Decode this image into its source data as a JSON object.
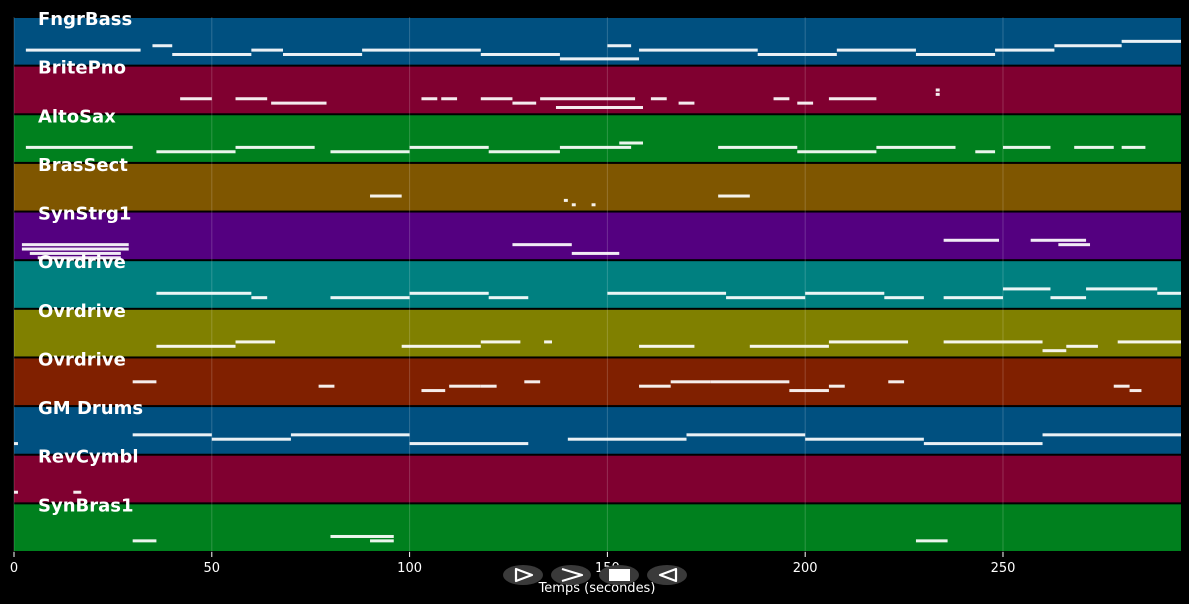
{
  "chart_data": {
    "type": "piano-roll",
    "xlabel": "Temps (secondes)",
    "xlim": [
      0,
      295
    ],
    "xticks": [
      0,
      50,
      100,
      150,
      200,
      250
    ],
    "grid": true,
    "tracks": [
      {
        "name": "FngrBass",
        "color": "#005080",
        "notes": [
          [
            3,
            29,
            3
          ],
          [
            35,
            5,
            2
          ],
          [
            40,
            20,
            4
          ],
          [
            60,
            8,
            3
          ],
          [
            68,
            20,
            4
          ],
          [
            88,
            30,
            3
          ],
          [
            118,
            20,
            4
          ],
          [
            138,
            20,
            5
          ],
          [
            150,
            6,
            2
          ],
          [
            158,
            30,
            3
          ],
          [
            188,
            20,
            4
          ],
          [
            208,
            20,
            3
          ],
          [
            228,
            20,
            4
          ],
          [
            248,
            15,
            3
          ],
          [
            263,
            17,
            2
          ],
          [
            280,
            15,
            1
          ]
        ]
      },
      {
        "name": "BritePno",
        "color": "#800030",
        "notes": [
          [
            42,
            8,
            3
          ],
          [
            56,
            8,
            3
          ],
          [
            65,
            14,
            4
          ],
          [
            103,
            4,
            3
          ],
          [
            108,
            4,
            3
          ],
          [
            118,
            8,
            3
          ],
          [
            126,
            6,
            4
          ],
          [
            133,
            24,
            3
          ],
          [
            137,
            22,
            5
          ],
          [
            161,
            4,
            3
          ],
          [
            168,
            4,
            4
          ],
          [
            192,
            4,
            3
          ],
          [
            198,
            4,
            4
          ],
          [
            206,
            12,
            3
          ],
          [
            233,
            1,
            1
          ],
          [
            233,
            1,
            2
          ]
        ]
      },
      {
        "name": "AltoSax",
        "color": "#00801e",
        "notes": [
          [
            3,
            27,
            3
          ],
          [
            36,
            20,
            4
          ],
          [
            56,
            20,
            3
          ],
          [
            80,
            20,
            4
          ],
          [
            100,
            20,
            3
          ],
          [
            120,
            18,
            4
          ],
          [
            138,
            18,
            3
          ],
          [
            153,
            6,
            2
          ],
          [
            178,
            20,
            3
          ],
          [
            198,
            20,
            4
          ],
          [
            218,
            20,
            3
          ],
          [
            243,
            5,
            4
          ],
          [
            250,
            12,
            3
          ],
          [
            268,
            10,
            3
          ],
          [
            280,
            6,
            3
          ]
        ]
      },
      {
        "name": "BrasSect",
        "color": "#7f5600",
        "notes": [
          [
            90,
            8,
            3
          ],
          [
            139,
            1,
            4
          ],
          [
            141,
            1,
            5
          ],
          [
            146,
            1,
            5
          ],
          [
            178,
            8,
            3
          ]
        ]
      },
      {
        "name": "SynStrg1",
        "color": "#540080",
        "notes": [
          [
            2,
            27,
            3
          ],
          [
            2,
            27,
            4
          ],
          [
            4,
            23,
            5
          ],
          [
            6,
            21,
            6
          ],
          [
            126,
            15,
            3
          ],
          [
            141,
            12,
            5
          ],
          [
            235,
            14,
            2
          ],
          [
            257,
            14,
            2
          ],
          [
            264,
            8,
            3
          ]
        ]
      },
      {
        "name": "Ovrdrive",
        "color": "#008080",
        "notes": [
          [
            36,
            24,
            3
          ],
          [
            60,
            4,
            4
          ],
          [
            80,
            20,
            4
          ],
          [
            100,
            20,
            3
          ],
          [
            120,
            10,
            4
          ],
          [
            150,
            30,
            3
          ],
          [
            180,
            20,
            4
          ],
          [
            200,
            20,
            3
          ],
          [
            220,
            10,
            4
          ],
          [
            235,
            15,
            4
          ],
          [
            250,
            12,
            2
          ],
          [
            262,
            9,
            4
          ],
          [
            271,
            18,
            2
          ],
          [
            289,
            6,
            3
          ]
        ]
      },
      {
        "name": "Ovrdrive",
        "color": "#808000",
        "notes": [
          [
            36,
            20,
            4
          ],
          [
            56,
            10,
            3
          ],
          [
            98,
            20,
            4
          ],
          [
            118,
            10,
            3
          ],
          [
            134,
            2,
            3
          ],
          [
            158,
            14,
            4
          ],
          [
            186,
            20,
            4
          ],
          [
            206,
            20,
            3
          ],
          [
            235,
            15,
            3
          ],
          [
            250,
            10,
            3
          ],
          [
            260,
            6,
            5
          ],
          [
            266,
            8,
            4
          ],
          [
            279,
            16,
            3
          ]
        ]
      },
      {
        "name": "Ovrdrive",
        "color": "#802000",
        "notes": [
          [
            30,
            6,
            1
          ],
          [
            77,
            4,
            2
          ],
          [
            103,
            6,
            3
          ],
          [
            110,
            8,
            2
          ],
          [
            118,
            4,
            2
          ],
          [
            129,
            4,
            1
          ],
          [
            158,
            8,
            2
          ],
          [
            166,
            10,
            1
          ],
          [
            176,
            20,
            1
          ],
          [
            196,
            10,
            3
          ],
          [
            206,
            4,
            2
          ],
          [
            221,
            4,
            1
          ],
          [
            278,
            4,
            2
          ],
          [
            282,
            3,
            3
          ]
        ]
      },
      {
        "name": "GM Drums",
        "color": "#005080",
        "notes": [
          [
            0,
            1,
            4
          ],
          [
            30,
            20,
            2
          ],
          [
            50,
            20,
            3
          ],
          [
            70,
            30,
            2
          ],
          [
            100,
            30,
            4
          ],
          [
            140,
            30,
            3
          ],
          [
            170,
            30,
            2
          ],
          [
            200,
            30,
            3
          ],
          [
            230,
            30,
            4
          ],
          [
            260,
            35,
            2
          ]
        ]
      },
      {
        "name": "RevCymbl",
        "color": "#800030",
        "notes": [
          [
            0,
            1,
            4
          ],
          [
            15,
            2,
            4
          ]
        ]
      },
      {
        "name": "SynBras1",
        "color": "#00801e",
        "notes": [
          [
            30,
            6,
            4
          ],
          [
            80,
            16,
            3
          ],
          [
            90,
            6,
            4
          ],
          [
            228,
            8,
            4
          ]
        ]
      }
    ]
  },
  "controls": {
    "icons": [
      "play-icon",
      "forward-icon",
      "stop-icon",
      "rewind-icon"
    ]
  }
}
